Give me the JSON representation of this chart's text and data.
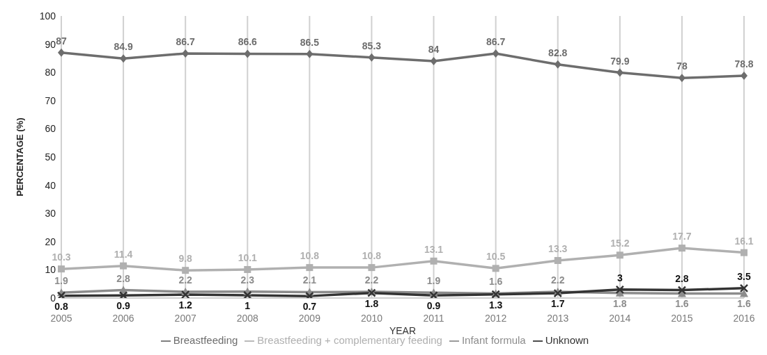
{
  "chart_data": {
    "type": "line",
    "xlabel": "YEAR",
    "ylabel": "PERCENTAGE (%)",
    "categories": [
      "2005",
      "2006",
      "2007",
      "2008",
      "2009",
      "2010",
      "2011",
      "2012",
      "2013",
      "2014",
      "2015",
      "2016"
    ],
    "series": [
      {
        "name": "Breastfeeding",
        "color": "#6d6d6d",
        "marker": "diamond",
        "values": [
          87,
          84.9,
          86.7,
          86.6,
          86.5,
          85.3,
          84,
          86.7,
          82.8,
          79.9,
          78,
          78.8
        ]
      },
      {
        "name": "Breastfeeding + complementary feeding",
        "color": "#b0b0b0",
        "marker": "square",
        "values": [
          10.3,
          11.4,
          9.8,
          10.1,
          10.8,
          10.8,
          13.1,
          10.5,
          13.3,
          15.2,
          17.7,
          16.1
        ]
      },
      {
        "name": "Infant formula",
        "color": "#8c8c8c",
        "marker": "triangle",
        "values": [
          1.9,
          2.8,
          2.2,
          2.3,
          2.1,
          2.2,
          1.9,
          1.6,
          2.2,
          1.8,
          1.6,
          1.6
        ]
      },
      {
        "name": "Unknown",
        "color": "#333333",
        "marker": "cross",
        "values": [
          0.8,
          0.9,
          1.2,
          1,
          0.7,
          1.8,
          0.9,
          1.3,
          1.7,
          3,
          2.8,
          3.5
        ]
      }
    ],
    "ylim": [
      0,
      100
    ],
    "yticks": [
      0,
      10,
      20,
      30,
      40,
      50,
      60,
      70,
      80,
      90,
      100
    ],
    "grid": "x",
    "legend": "bottom",
    "data_labels": true,
    "line_style": "solid"
  }
}
